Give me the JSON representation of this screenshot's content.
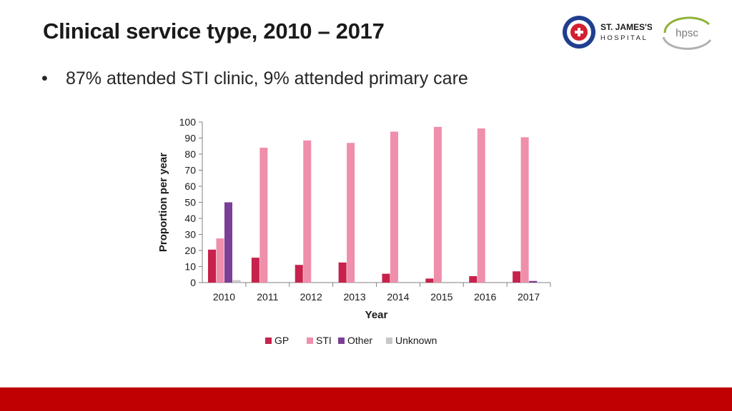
{
  "slide": {
    "title": "Clinical service type, 2010 – 2017",
    "bullet_symbol": "•",
    "bullet": "87% attended STI clinic, 9% attended primary care"
  },
  "logos": {
    "st_james_line1": "ST. JAMES'S",
    "st_james_line2": "HOSPITAL",
    "hpsc": "hpsc"
  },
  "colors": {
    "GP": "#c7214c",
    "STI": "#ef8fab",
    "Other": "#7b3f96",
    "Unknown": "#c8c8c8",
    "footer": "#c00000"
  },
  "chart_data": {
    "type": "bar",
    "title": "",
    "xlabel": "Year",
    "ylabel": "Proportion per year",
    "ylim": [
      0,
      100
    ],
    "yticks": [
      0,
      10,
      20,
      30,
      40,
      50,
      60,
      70,
      80,
      90,
      100
    ],
    "categories": [
      "2010",
      "2011",
      "2012",
      "2013",
      "2014",
      "2015",
      "2016",
      "2017"
    ],
    "series": [
      {
        "name": "GP",
        "values": [
          20.5,
          15.5,
          11,
          12.5,
          5.5,
          2.5,
          4,
          7
        ]
      },
      {
        "name": "STI",
        "values": [
          27.5,
          84,
          88.5,
          87,
          94,
          97,
          96,
          90.5
        ]
      },
      {
        "name": "Other",
        "values": [
          50,
          0,
          0,
          0,
          0,
          0,
          0,
          1
        ]
      },
      {
        "name": "Unknown",
        "values": [
          1.5,
          0,
          0,
          0,
          0,
          0,
          0,
          0
        ]
      }
    ],
    "legend": [
      "GP",
      "STI",
      "Other",
      "Unknown"
    ],
    "legend_position": "bottom"
  }
}
